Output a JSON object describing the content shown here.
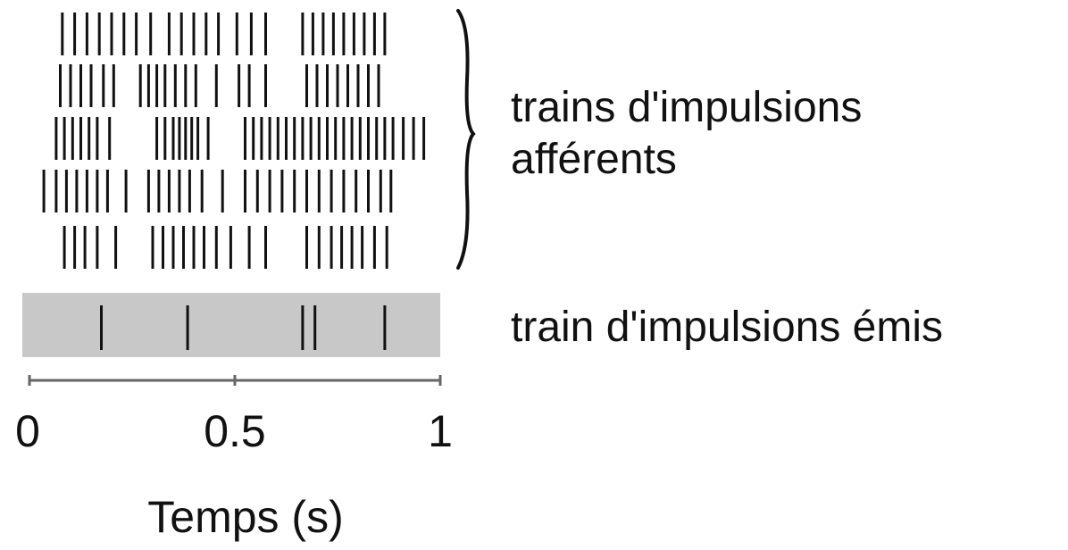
{
  "chart_data": {
    "type": "raster",
    "xlabel": "Temps (s)",
    "xlim": [
      0,
      1
    ],
    "xticks": [
      0,
      0.5,
      1
    ],
    "xtick_labels": [
      "0",
      "0.5",
      "1"
    ],
    "afferent_label": "trains d'impulsions afférents",
    "afferent_label_lines": [
      "trains d'impulsions",
      "afférents"
    ],
    "emitted_label": "train d'impulsions émis",
    "afferent_trains": [
      {
        "spikes": [
          0.08,
          0.11,
          0.14,
          0.17,
          0.2,
          0.23,
          0.26,
          0.295,
          0.34,
          0.37,
          0.4,
          0.43,
          0.46,
          0.505,
          0.54,
          0.575,
          0.665,
          0.69,
          0.715,
          0.74,
          0.765,
          0.79,
          0.815,
          0.84,
          0.865
        ]
      },
      {
        "spikes": [
          0.075,
          0.1,
          0.125,
          0.15,
          0.18,
          0.205,
          0.27,
          0.29,
          0.31,
          0.33,
          0.355,
          0.38,
          0.405,
          0.455,
          0.51,
          0.535,
          0.575,
          0.675,
          0.7,
          0.725,
          0.75,
          0.775,
          0.8,
          0.825,
          0.85
        ]
      },
      {
        "spikes": [
          0.065,
          0.085,
          0.105,
          0.125,
          0.145,
          0.165,
          0.195,
          0.31,
          0.33,
          0.35,
          0.365,
          0.38,
          0.395,
          0.41,
          0.435,
          0.525,
          0.545,
          0.565,
          0.585,
          0.605,
          0.625,
          0.645,
          0.665,
          0.685,
          0.705,
          0.725,
          0.745,
          0.765,
          0.785,
          0.805,
          0.825,
          0.845,
          0.865,
          0.885,
          0.91,
          0.935,
          0.96
        ]
      },
      {
        "spikes": [
          0.035,
          0.065,
          0.09,
          0.115,
          0.14,
          0.165,
          0.19,
          0.235,
          0.29,
          0.315,
          0.34,
          0.365,
          0.39,
          0.42,
          0.47,
          0.525,
          0.555,
          0.585,
          0.615,
          0.645,
          0.675,
          0.705,
          0.735,
          0.765,
          0.795,
          0.825,
          0.855,
          0.88
        ]
      },
      {
        "spikes": [
          0.085,
          0.11,
          0.135,
          0.165,
          0.21,
          0.3,
          0.325,
          0.35,
          0.375,
          0.4,
          0.425,
          0.455,
          0.49,
          0.535,
          0.575,
          0.675,
          0.705,
          0.735,
          0.76,
          0.785,
          0.81,
          0.84,
          0.87
        ]
      }
    ],
    "emitted_train": {
      "spikes": [
        0.175,
        0.385,
        0.665,
        0.695,
        0.865
      ]
    },
    "colors": {
      "spike": "#111111",
      "emitted_band": "#c8c8c8",
      "axis": "#666666",
      "text": "#111111"
    },
    "grid": false
  }
}
